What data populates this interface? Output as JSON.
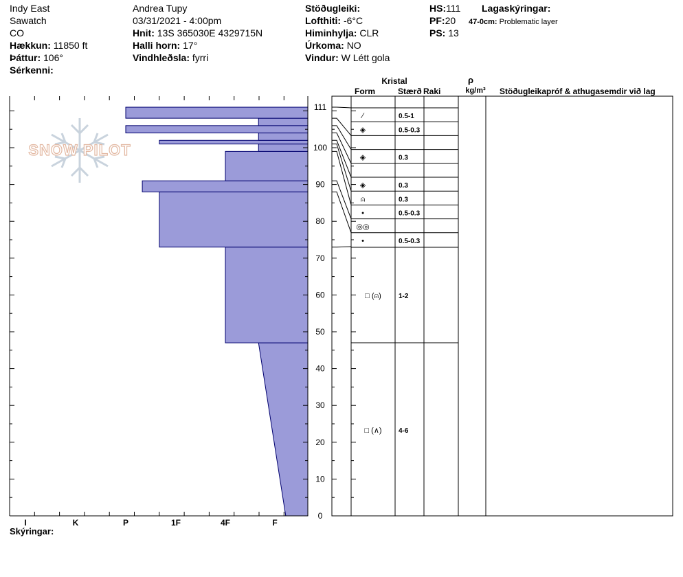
{
  "header": {
    "col1": {
      "location": "Indy East",
      "range": "Sawatch",
      "state": "CO",
      "elevation_label": "Hækkun:",
      "elevation_value": "11850 ft",
      "aspect_label": "Þáttur:",
      "aspect_value": "106°",
      "features_label": "Sérkenni:"
    },
    "col2": {
      "observer": "Andrea Tupy",
      "datetime": "03/31/2021 - 4:00pm",
      "coords_label": "Hnit:",
      "coords_value": "13S 365030E 4329715N",
      "slope_label": "Halli horn:",
      "slope_value": "17°",
      "wind_loading_label": "Vindhleðsla:",
      "wind_loading_value": "fyrri"
    },
    "col3": {
      "stability_label": "Stöðugleiki:",
      "air_temp_label": "Lofthiti:",
      "air_temp_value": "-6°C",
      "sky_label": "Himinhylja:",
      "sky_value": "CLR",
      "precip_label": "Úrkoma:",
      "precip_value": "NO",
      "wind_label": "Vindur:",
      "wind_value": "W Létt gola"
    },
    "col4": {
      "hs_label": "HS:",
      "hs_value": "111",
      "pf_label": "PF:",
      "pf_value": "20",
      "ps_label": "PS:",
      "ps_value": "13"
    },
    "legend": {
      "title": "Lagaskýringar:",
      "item_range": "47-0cm:",
      "item_text": "Problematic layer"
    }
  },
  "watermark": {
    "text": "SNOW PILOT"
  },
  "table_headers": {
    "crystal": "Kristal",
    "form": "Form",
    "size": "Stærð",
    "moisture": "Raki",
    "density_symbol": "ρ",
    "density_unit": "kg/m³",
    "comments": "Stöðugleikapróf & athugasemdir við lag"
  },
  "footer": {
    "legend_label": "Skýringar:"
  },
  "colors": {
    "fill": "#9b9bd9",
    "stroke": "#00006e",
    "watermark": "#e3b9a3",
    "snowflake": "#c9d3dd"
  },
  "chart_data": {
    "type": "snow-profile",
    "y_axis": {
      "label": "",
      "min": 0,
      "max": 111,
      "ticks": [
        "0",
        "10",
        "20",
        "30",
        "40",
        "50",
        "60",
        "70",
        "80",
        "90",
        "100",
        "111"
      ]
    },
    "x_axis": {
      "hardness_labels": [
        "I",
        "K",
        "P",
        "1F",
        "4F",
        "F"
      ]
    },
    "hardness_layers": [
      {
        "from": 47,
        "to": 73,
        "hardness": "4F"
      },
      {
        "from": 73,
        "to": 88,
        "hardness": "1F+"
      },
      {
        "from": 88,
        "to": 91,
        "hardness": "P-"
      },
      {
        "from": 91,
        "to": 99,
        "hardness": "4F"
      },
      {
        "from": 99,
        "to": 101,
        "hardness": "F+"
      },
      {
        "from": 101,
        "to": 102,
        "hardness": "1F+"
      },
      {
        "from": 102,
        "to": 104,
        "hardness": "F+"
      },
      {
        "from": 104,
        "to": 106,
        "hardness": "P"
      },
      {
        "from": 106,
        "to": 108,
        "hardness": "F+"
      },
      {
        "from": 108,
        "to": 111,
        "hardness": "P"
      }
    ],
    "hardness_gradient": {
      "from": 0,
      "to": 47,
      "hardness_at_bottom": "F-",
      "hardness_at_top": "F+"
    },
    "crystal_layers": [
      {
        "symbol": "⁄",
        "size": "0.5-1"
      },
      {
        "symbol": "◈",
        "size": "0.5-0.3"
      },
      {
        "symbol": "",
        "size": ""
      },
      {
        "symbol": "◈",
        "size": "0.3"
      },
      {
        "symbol": "",
        "size": ""
      },
      {
        "symbol": "◈",
        "size": "0.3"
      },
      {
        "symbol": "⍝",
        "size": "0.3"
      },
      {
        "symbol": "•",
        "size": "0.5-0.3"
      },
      {
        "symbol": "◎◎",
        "size": ""
      },
      {
        "symbol": "•",
        "size": "0.5-0.3"
      },
      {
        "symbol": "□ (⍝)",
        "size": "1-2"
      },
      {
        "symbol": "□ (∧)",
        "size": "4-6"
      }
    ]
  }
}
